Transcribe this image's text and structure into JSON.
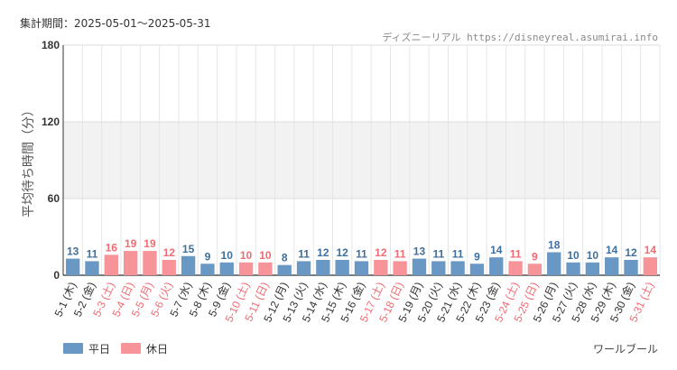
{
  "period_label": "集計期間：2025-05-01～2025-05-31",
  "source_label": "ディズニーリアル https://disneyreal.asumirai.info",
  "facility_label": "ワールブール",
  "colors": {
    "weekday": "#6a98c4",
    "holiday": "#f7949a",
    "weekday_text": "#3e6f9e",
    "holiday_text": "#f06b73"
  },
  "chart_data": {
    "type": "bar",
    "ylabel": "平均待ち時間（分）",
    "ylim": [
      0,
      180
    ],
    "yticks": [
      0,
      60,
      120,
      180
    ],
    "grid": true,
    "legend_position": "bottom-left",
    "legend": [
      {
        "key": "weekday",
        "label": "平日"
      },
      {
        "key": "holiday",
        "label": "休日"
      }
    ],
    "categories": [
      "5-1 (木)",
      "5-2 (金)",
      "5-3 (土)",
      "5-4 (日)",
      "5-5 (月)",
      "5-6 (火)",
      "5-7 (水)",
      "5-8 (木)",
      "5-9 (金)",
      "5-10 (土)",
      "5-11 (日)",
      "5-12 (月)",
      "5-13 (火)",
      "5-14 (水)",
      "5-15 (木)",
      "5-16 (金)",
      "5-17 (土)",
      "5-18 (日)",
      "5-19 (月)",
      "5-20 (火)",
      "5-21 (水)",
      "5-22 (木)",
      "5-23 (金)",
      "5-24 (土)",
      "5-25 (日)",
      "5-26 (月)",
      "5-27 (火)",
      "5-28 (水)",
      "5-29 (木)",
      "5-30 (金)",
      "5-31 (土)"
    ],
    "values": [
      13,
      11,
      16,
      19,
      19,
      12,
      15,
      9,
      10,
      10,
      10,
      8,
      11,
      12,
      12,
      11,
      12,
      11,
      13,
      11,
      11,
      9,
      14,
      11,
      9,
      18,
      10,
      10,
      14,
      12,
      14
    ],
    "day_type": [
      "weekday",
      "weekday",
      "holiday",
      "holiday",
      "holiday",
      "holiday",
      "weekday",
      "weekday",
      "weekday",
      "holiday",
      "holiday",
      "weekday",
      "weekday",
      "weekday",
      "weekday",
      "weekday",
      "holiday",
      "holiday",
      "weekday",
      "weekday",
      "weekday",
      "weekday",
      "weekday",
      "holiday",
      "holiday",
      "weekday",
      "weekday",
      "weekday",
      "weekday",
      "weekday",
      "holiday"
    ]
  }
}
